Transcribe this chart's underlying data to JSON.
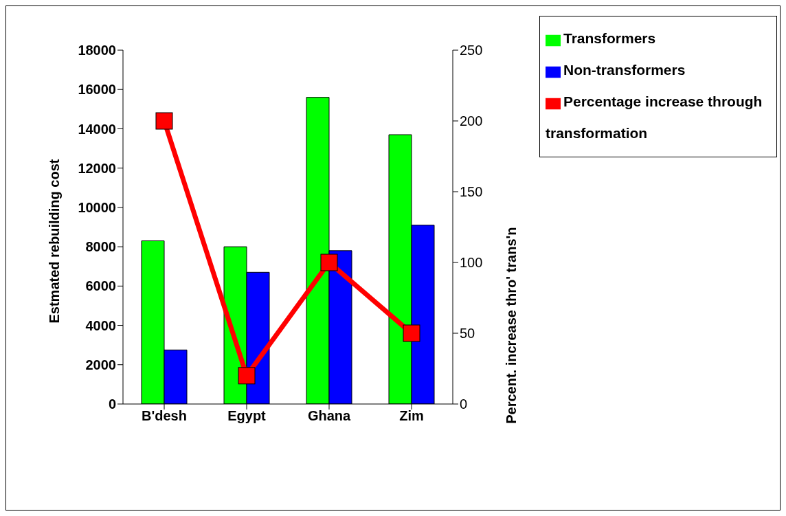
{
  "chart_data": {
    "type": "bar",
    "categories": [
      "B'desh",
      "Egypt",
      "Ghana",
      "Zim"
    ],
    "series": [
      {
        "name": "Transformers",
        "color": "#00ff00",
        "values": [
          8300,
          8000,
          15600,
          13700
        ]
      },
      {
        "name": "Non-transformers",
        "color": "#0000ff",
        "values": [
          2750,
          6700,
          7800,
          9100
        ]
      },
      {
        "name": "Percentage increase through transformation",
        "type": "line",
        "axis": "y2",
        "color": "#ff0000",
        "values": [
          200,
          20,
          100,
          50
        ],
        "marker": "square"
      }
    ],
    "ylabel": "Estmated rebuilding cost",
    "y2label": "Percent. increase thro' trans'n",
    "ylim": [
      0,
      18000
    ],
    "yticks": [
      0,
      2000,
      4000,
      6000,
      8000,
      10000,
      12000,
      14000,
      16000,
      18000
    ],
    "y2lim": [
      0,
      250
    ],
    "y2ticks": [
      0,
      50,
      100,
      150,
      200,
      250
    ],
    "grid": false,
    "legend": "top right"
  }
}
